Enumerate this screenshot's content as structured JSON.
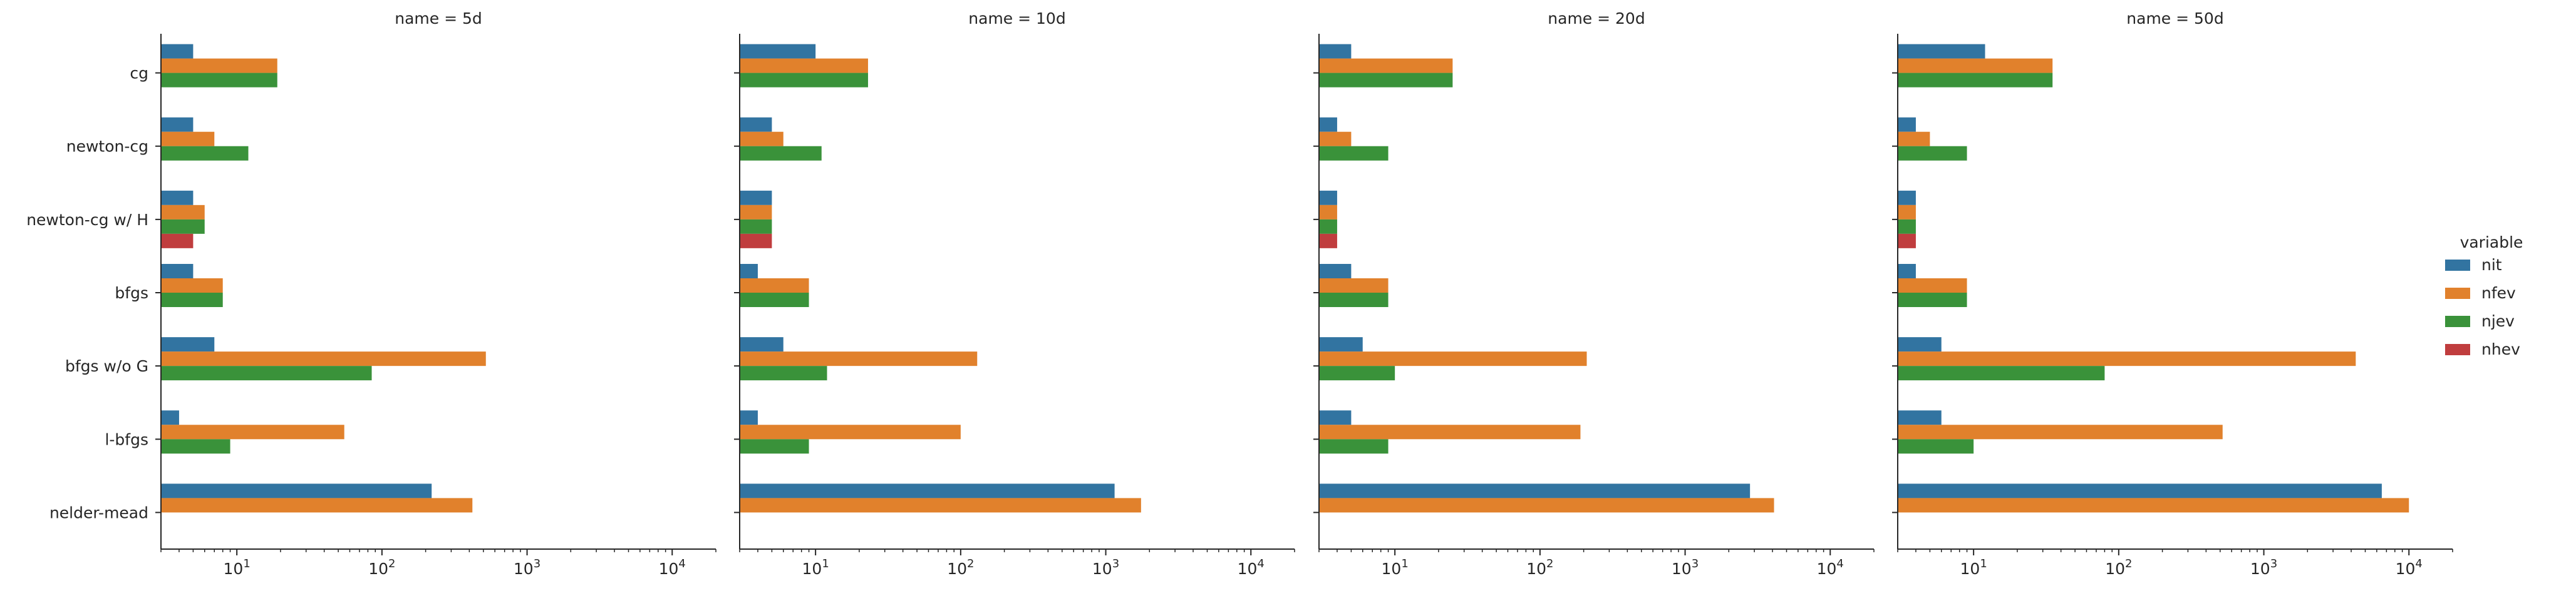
{
  "chart_data": {
    "type": "bar",
    "orientation": "horizontal",
    "xscale": "log",
    "xlim": [
      3,
      20000
    ],
    "x_ticks": [
      10,
      100,
      1000,
      10000
    ],
    "x_tick_labels": [
      "10",
      "10",
      "10",
      "10"
    ],
    "x_tick_exponents": [
      "1",
      "2",
      "3",
      "4"
    ],
    "categories": [
      "cg",
      "newton-cg",
      "newton-cg w/ H",
      "bfgs",
      "bfgs w/o G",
      "l-bfgs",
      "nelder-mead"
    ],
    "legend": {
      "title": "variable",
      "position": "right",
      "entries": [
        "nit",
        "nfev",
        "njev",
        "nhev"
      ]
    },
    "colors": {
      "nit": "#3274a1",
      "nfev": "#e1812c",
      "njev": "#3a923a",
      "nhev": "#c03d3e"
    },
    "panels": [
      {
        "title": "name = 5d",
        "series": [
          {
            "name": "nit",
            "values": [
              5,
              5,
              5,
              5,
              7,
              4,
              220
            ]
          },
          {
            "name": "nfev",
            "values": [
              19,
              7,
              6,
              8,
              520,
              55,
              420
            ]
          },
          {
            "name": "njev",
            "values": [
              19,
              12,
              6,
              8,
              85,
              9,
              null
            ]
          },
          {
            "name": "nhev",
            "values": [
              null,
              null,
              5,
              null,
              null,
              null,
              null
            ]
          }
        ]
      },
      {
        "title": "name = 10d",
        "series": [
          {
            "name": "nit",
            "values": [
              10,
              5,
              5,
              4,
              6,
              4,
              1150
            ]
          },
          {
            "name": "nfev",
            "values": [
              23,
              6,
              5,
              9,
              130,
              100,
              1750
            ]
          },
          {
            "name": "njev",
            "values": [
              23,
              11,
              5,
              9,
              12,
              9,
              null
            ]
          },
          {
            "name": "nhev",
            "values": [
              null,
              null,
              5,
              null,
              null,
              null,
              null
            ]
          }
        ]
      },
      {
        "title": "name = 20d",
        "series": [
          {
            "name": "nit",
            "values": [
              5,
              4,
              4,
              5,
              6,
              5,
              2800
            ]
          },
          {
            "name": "nfev",
            "values": [
              25,
              5,
              4,
              9,
              210,
              190,
              4100
            ]
          },
          {
            "name": "njev",
            "values": [
              25,
              9,
              4,
              9,
              10,
              9,
              null
            ]
          },
          {
            "name": "nhev",
            "values": [
              null,
              null,
              4,
              null,
              null,
              null,
              null
            ]
          }
        ]
      },
      {
        "title": "name = 50d",
        "series": [
          {
            "name": "nit",
            "values": [
              12,
              4,
              4,
              4,
              6,
              6,
              6500
            ]
          },
          {
            "name": "nfev",
            "values": [
              35,
              5,
              4,
              9,
              4300,
              520,
              10000
            ]
          },
          {
            "name": "njev",
            "values": [
              35,
              9,
              4,
              9,
              80,
              10,
              null
            ]
          },
          {
            "name": "nhev",
            "values": [
              null,
              null,
              4,
              null,
              null,
              null,
              null
            ]
          }
        ]
      }
    ]
  }
}
